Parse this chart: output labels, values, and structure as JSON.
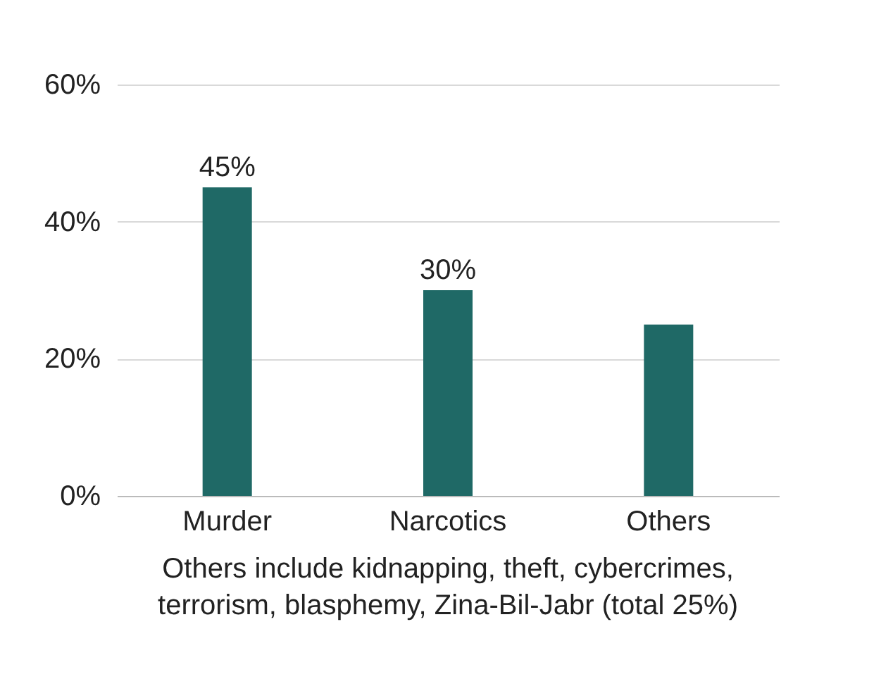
{
  "chart_data": {
    "type": "bar",
    "categories": [
      "Murder",
      "Narcotics",
      "Others"
    ],
    "values": [
      45,
      30,
      25
    ],
    "color": "#1f6966",
    "value_labels": [
      "45%",
      "30%",
      null
    ],
    "ylim": [
      0,
      60
    ],
    "yticks": [
      {
        "value": 0,
        "label": "0%"
      },
      {
        "value": 20,
        "label": "20%"
      },
      {
        "value": 40,
        "label": "40%"
      },
      {
        "value": 60,
        "label": "60%"
      }
    ],
    "grid": "y",
    "annotations": [
      "Others include kidnapping, theft, cybercrimes, terrorism, blasphemy, Zina-Bil-Jabr (total 25%)"
    ]
  }
}
